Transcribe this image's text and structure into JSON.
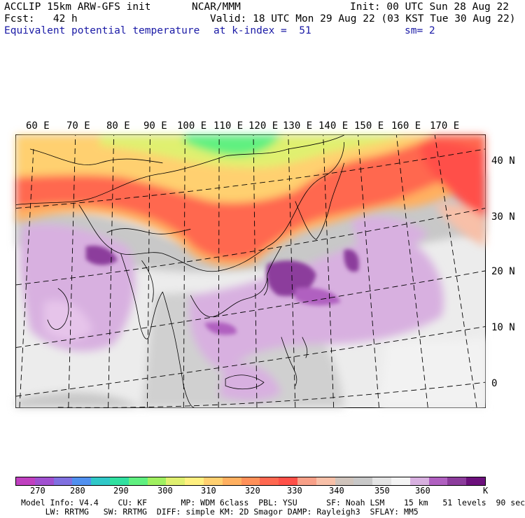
{
  "header": {
    "model": "ACCLIP 15km ARW-GFS init",
    "center": "NCAR/MMM",
    "init": "Init: 00 UTC Sun 28 Aug 22",
    "fcst": "Fcst:   42 h",
    "valid": "Valid: 18 UTC Mon 29 Aug 22 (03 KST Tue 30 Aug 22)",
    "field": "Equivalent potential temperature",
    "level": "at k-index =  51",
    "smooth": "sm= 2"
  },
  "axes": {
    "lon_labels": [
      "60 E",
      "70 E",
      "80 E",
      "90 E",
      "100 E",
      "110 E",
      "120 E",
      "130 E",
      "140 E",
      "150 E",
      "160 E",
      "170 E"
    ],
    "lat_labels": [
      "40 N",
      "30 N",
      "20 N",
      "10 N",
      "0"
    ]
  },
  "colorbar": {
    "colors": [
      "#c040c0",
      "#a050d0",
      "#8070e0",
      "#5090f0",
      "#30c8c8",
      "#30e0a0",
      "#60f080",
      "#a0f060",
      "#e0f070",
      "#fff080",
      "#ffd070",
      "#ffb060",
      "#ff9058",
      "#ff6850",
      "#ff5048",
      "#f8a088",
      "#f8c0a8",
      "#d0c4bc",
      "#c8c8c8",
      "#e4e4e4",
      "#f4f4f4",
      "#d8b0e0",
      "#b060c0",
      "#8c3c9c",
      "#6c107c"
    ],
    "labels": [
      "270",
      "280",
      "290",
      "300",
      "310",
      "320",
      "330",
      "340",
      "350",
      "360"
    ],
    "unit": "K"
  },
  "footer": {
    "line1": "Model Info: V4.4    CU: KF       MP: WDM 6class  PBL: YSU      SF: Noah LSM    15 km   51 levels  90 sec",
    "line2": "     LW: RRTMG   SW: RRTMG  DIFF: simple KM: 2D Smagor DAMP: Rayleigh3  SFLAY: MM5"
  }
}
